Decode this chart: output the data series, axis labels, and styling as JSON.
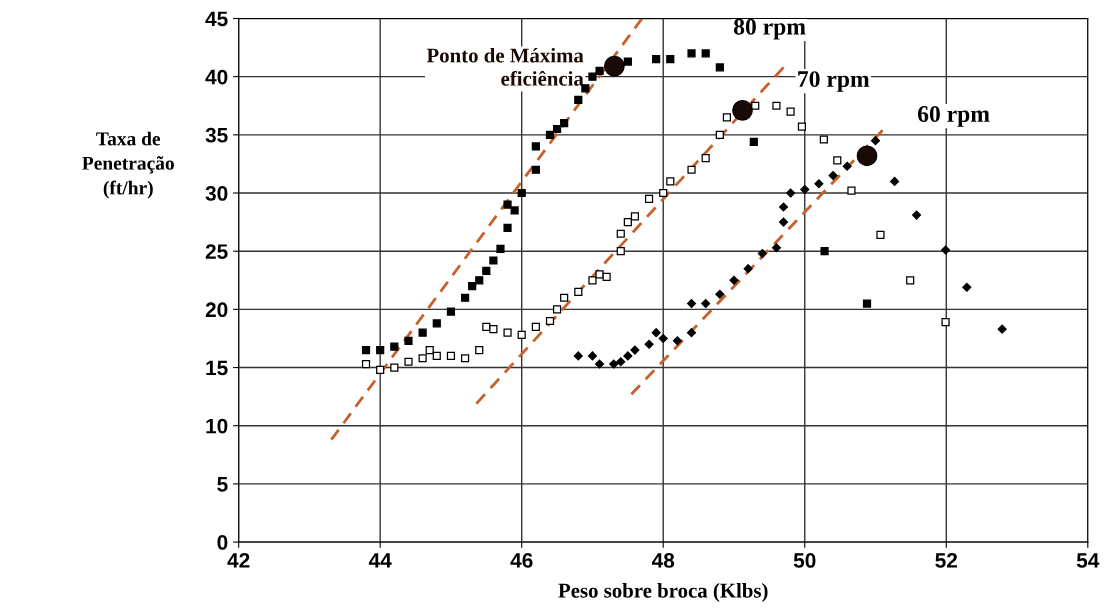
{
  "chart_data": {
    "type": "scatter",
    "xlabel": "Peso sobre broca (Klbs)",
    "ylabel": "Taxa de\nPenetração\n(ft/hr)",
    "xlim": [
      42,
      54
    ],
    "xticks": [
      42,
      44,
      46,
      48,
      50,
      52,
      54
    ],
    "ylim": [
      0,
      45
    ],
    "yticks": [
      0,
      5,
      10,
      15,
      20,
      25,
      30,
      35,
      40,
      45
    ],
    "grid": true,
    "legend": false,
    "series": [
      {
        "name": "80 rpm",
        "type": "scatter",
        "color": "#000000",
        "marker": "square",
        "x": [
          43.8,
          44.0,
          44.2,
          44.4,
          44.6,
          44.8,
          45.0,
          45.2,
          45.3,
          45.4,
          45.5,
          45.6,
          45.7,
          45.8,
          45.8,
          45.9,
          46.0,
          46.2,
          46.2,
          46.4,
          46.5,
          46.6,
          46.8,
          46.9,
          47.0,
          47.1,
          47.5,
          47.9,
          48.1,
          48.4,
          48.6,
          48.8,
          49.28,
          50.28,
          50.88
        ],
        "values": [
          16.5,
          16.5,
          16.8,
          17.3,
          18.0,
          18.8,
          19.8,
          21.0,
          22.0,
          22.5,
          23.3,
          24.2,
          25.2,
          27.0,
          29.0,
          28.5,
          30.0,
          32.0,
          34.0,
          35.0,
          35.5,
          36.0,
          38.0,
          39.0,
          40.0,
          40.5,
          41.3,
          41.5,
          41.5,
          42.0,
          42.0,
          40.8,
          34.4,
          25.0,
          20.5
        ]
      },
      {
        "name": "70 rpm",
        "type": "scatter",
        "color": "#ffffff",
        "marker": "square",
        "x": [
          43.8,
          44.0,
          44.2,
          44.4,
          44.6,
          44.7,
          44.8,
          45.0,
          45.2,
          45.4,
          45.5,
          45.6,
          45.8,
          46.0,
          46.2,
          46.4,
          46.5,
          46.6,
          46.8,
          47.0,
          47.1,
          47.2,
          47.4,
          47.4,
          47.5,
          47.6,
          47.8,
          48.0,
          48.1,
          48.4,
          48.6,
          48.8,
          48.9,
          49.3,
          49.6,
          49.8,
          49.96,
          50.27,
          50.46,
          50.66,
          51.07,
          51.49,
          51.99
        ],
        "values": [
          15.3,
          14.8,
          15.0,
          15.5,
          15.8,
          16.5,
          16.0,
          16.0,
          15.8,
          16.5,
          18.5,
          18.3,
          18.0,
          17.8,
          18.5,
          19.0,
          20.0,
          21.0,
          21.5,
          22.5,
          23.0,
          22.8,
          25.0,
          26.5,
          27.5,
          28.0,
          29.5,
          30.0,
          31.0,
          32.0,
          33.0,
          35.0,
          36.5,
          37.5,
          37.5,
          37.0,
          35.7,
          34.6,
          32.8,
          30.2,
          26.4,
          22.5,
          18.9
        ]
      },
      {
        "name": "60 rpm",
        "type": "scatter",
        "color": "#000000",
        "marker": "diamond",
        "x": [
          46.8,
          47.0,
          47.1,
          47.3,
          47.4,
          47.5,
          47.6,
          47.8,
          47.9,
          48.0,
          48.2,
          48.4,
          48.4,
          48.6,
          48.8,
          49.0,
          49.2,
          49.4,
          49.6,
          49.7,
          49.7,
          49.8,
          50.0,
          50.2,
          50.4,
          50.6,
          50.8,
          51.0,
          51.27,
          51.58,
          51.99,
          52.29,
          52.79
        ],
        "values": [
          16.0,
          16.0,
          15.3,
          15.3,
          15.5,
          16.0,
          16.5,
          17.0,
          18.0,
          17.5,
          17.3,
          18.0,
          20.5,
          20.5,
          21.3,
          22.5,
          23.5,
          24.8,
          25.3,
          27.5,
          28.8,
          30.0,
          30.3,
          30.8,
          31.5,
          32.3,
          null,
          34.5,
          31.0,
          28.1,
          25.1,
          21.9,
          18.3
        ]
      },
      {
        "name": "Ponto de Máxima\neficiência",
        "type": "scatter",
        "color": "#1a0a05",
        "marker": "circle",
        "x": [
          47.31,
          49.12,
          50.88
        ],
        "values": [
          40.9,
          37.1,
          33.2
        ]
      },
      {
        "type": "line",
        "color": "#c8602a",
        "line_style": "dashed",
        "x": [
          43.31,
          47.7
        ],
        "values": [
          8.8,
          45
        ]
      },
      {
        "type": "line",
        "color": "#c8602a",
        "line_style": "dashed",
        "x": [
          45.36,
          49.7
        ],
        "values": [
          11.9,
          40.8
        ]
      },
      {
        "type": "line",
        "color": "#c8602a",
        "line_style": "dashed",
        "x": [
          47.55,
          51.1
        ],
        "values": [
          12.7,
          35.4
        ]
      }
    ]
  }
}
